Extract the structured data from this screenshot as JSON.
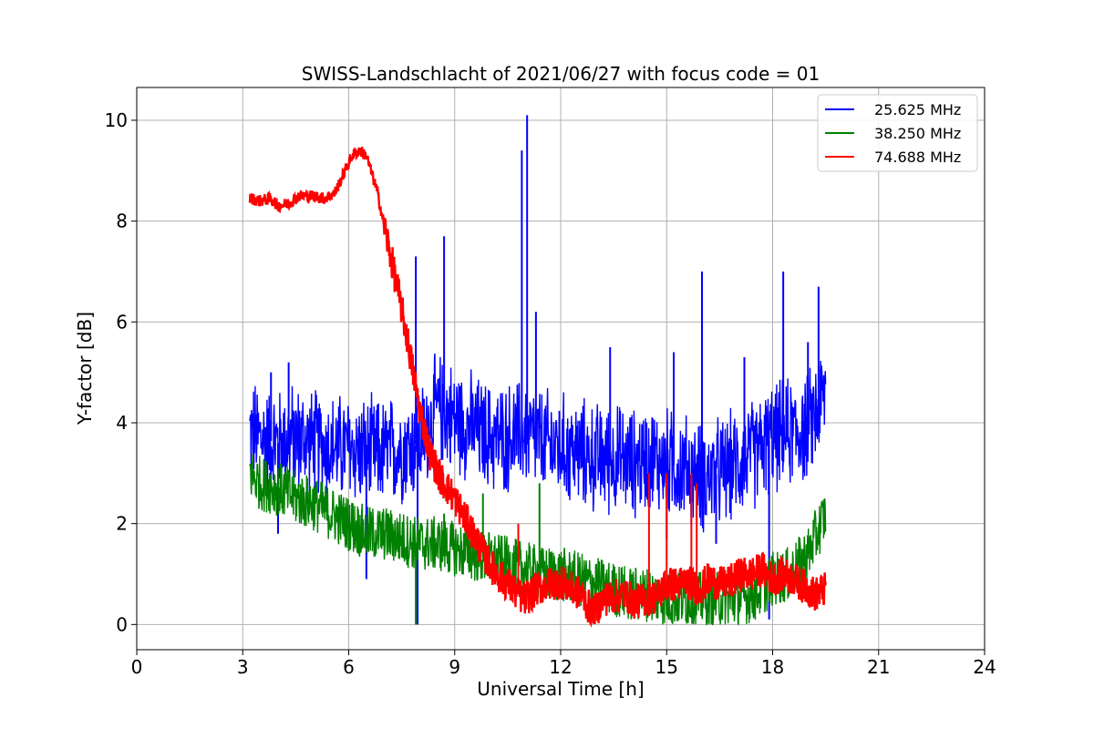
{
  "chart_data": {
    "type": "line",
    "title": "SWISS-Landschlacht of 2021/06/27 with focus code = 01",
    "xlabel": "Universal Time [h]",
    "ylabel": "Y-factor [dB]",
    "xlim": [
      0,
      24
    ],
    "ylim": [
      -0.5,
      10.65
    ],
    "xticks": [
      0,
      3,
      6,
      9,
      12,
      15,
      18,
      21,
      24
    ],
    "yticks": [
      0,
      2,
      4,
      6,
      8,
      10
    ],
    "grid": true,
    "legend_position": "top-right",
    "series": [
      {
        "name": "25.625 MHz",
        "color": "#0000ff",
        "x": [
          3.2,
          3.5,
          4.0,
          4.5,
          5.0,
          5.5,
          6.0,
          6.5,
          7.0,
          7.5,
          8.0,
          8.5,
          9.0,
          9.5,
          10.0,
          10.5,
          11.0,
          11.5,
          12.0,
          12.5,
          13.0,
          13.5,
          14.0,
          14.5,
          15.0,
          15.5,
          16.0,
          16.5,
          17.0,
          17.5,
          18.0,
          18.5,
          19.0,
          19.5
        ],
        "y": [
          3.8,
          3.7,
          3.6,
          3.7,
          3.6,
          3.5,
          3.5,
          3.4,
          3.4,
          3.5,
          3.6,
          4.3,
          4.1,
          3.9,
          3.7,
          3.7,
          3.8,
          3.6,
          3.5,
          3.4,
          3.3,
          3.3,
          3.2,
          3.3,
          3.2,
          3.1,
          2.9,
          3.0,
          3.2,
          3.4,
          3.7,
          3.8,
          3.9,
          4.6
        ],
        "spikes_x": [
          3.8,
          4.3,
          7.9,
          8.7,
          10.9,
          11.05,
          11.3,
          13.4,
          15.2,
          16.0,
          17.2,
          18.3,
          19.0,
          19.3,
          7.95,
          17.9,
          4.0,
          6.5,
          15.0,
          16.4
        ],
        "spikes_y": [
          5.0,
          5.2,
          7.3,
          7.7,
          9.4,
          10.1,
          6.2,
          5.5,
          5.4,
          7.0,
          5.3,
          7.0,
          5.6,
          6.7,
          0.0,
          0.1,
          1.8,
          0.9,
          1.7,
          1.6
        ]
      },
      {
        "name": "38.250 MHz",
        "color": "#008000",
        "x": [
          3.2,
          3.5,
          4.0,
          4.5,
          5.0,
          5.5,
          6.0,
          6.5,
          7.0,
          7.5,
          8.0,
          8.5,
          9.0,
          9.5,
          10.0,
          10.5,
          11.0,
          11.5,
          12.0,
          12.5,
          13.0,
          13.5,
          14.0,
          14.5,
          15.0,
          15.5,
          16.0,
          16.5,
          17.0,
          17.5,
          18.0,
          18.5,
          19.0,
          19.5
        ],
        "y": [
          3.0,
          2.8,
          2.7,
          2.5,
          2.4,
          2.2,
          2.0,
          1.8,
          1.8,
          1.7,
          1.6,
          1.6,
          1.5,
          1.4,
          1.3,
          1.2,
          1.1,
          1.0,
          1.0,
          0.9,
          0.8,
          0.7,
          0.6,
          0.6,
          0.5,
          0.5,
          0.5,
          0.5,
          0.5,
          0.6,
          0.9,
          1.0,
          1.4,
          2.2
        ],
        "spikes_x": [
          7.9,
          9.8,
          11.4,
          8.7
        ],
        "spikes_y": [
          0.0,
          2.6,
          2.8,
          2.2
        ]
      },
      {
        "name": "74.688 MHz",
        "color": "#ff0000",
        "x": [
          3.2,
          3.5,
          3.8,
          4.0,
          4.3,
          4.6,
          5.0,
          5.3,
          5.6,
          5.9,
          6.1,
          6.3,
          6.5,
          6.8,
          7.1,
          7.4,
          7.6,
          7.8,
          8.0,
          8.3,
          8.6,
          9.0,
          9.3,
          9.6,
          9.9,
          10.2,
          10.5,
          10.8,
          11.0,
          11.3,
          11.7,
          12.0,
          12.3,
          12.6,
          12.9,
          13.2,
          13.5,
          13.8,
          14.1,
          14.4,
          14.7,
          15.0,
          15.3,
          15.6,
          15.9,
          16.2,
          16.5,
          16.8,
          17.1,
          17.4,
          17.7,
          18.0,
          18.3,
          18.6,
          18.9,
          19.2,
          19.5
        ],
        "y": [
          8.45,
          8.4,
          8.45,
          8.3,
          8.35,
          8.5,
          8.5,
          8.45,
          8.55,
          9.0,
          9.3,
          9.4,
          9.3,
          8.6,
          7.6,
          6.6,
          5.9,
          5.1,
          4.3,
          3.4,
          2.9,
          2.5,
          2.1,
          1.7,
          1.3,
          1.0,
          0.8,
          0.6,
          0.5,
          0.7,
          0.8,
          0.85,
          0.7,
          0.6,
          0.2,
          0.5,
          0.55,
          0.6,
          0.45,
          0.5,
          0.55,
          0.8,
          0.8,
          0.85,
          0.7,
          0.9,
          0.8,
          0.85,
          1.0,
          1.0,
          1.1,
          0.9,
          1.0,
          0.9,
          0.75,
          0.6,
          0.7
        ],
        "spikes_x": [
          14.5,
          15.0,
          15.7,
          15.85,
          10.8
        ],
        "spikes_y": [
          3.0,
          3.0,
          3.0,
          2.8,
          2.0
        ]
      }
    ]
  }
}
